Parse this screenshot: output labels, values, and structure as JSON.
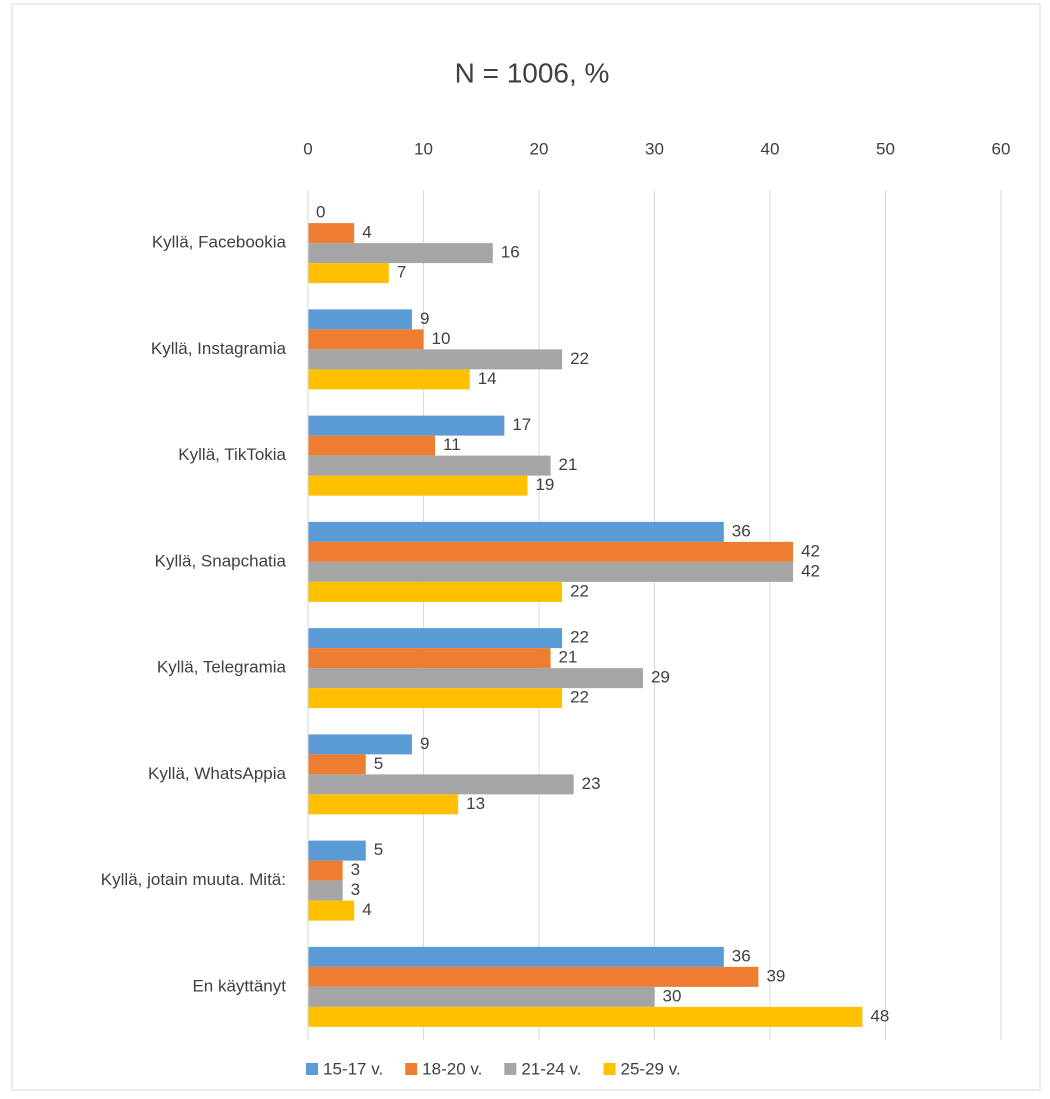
{
  "chart_data": {
    "type": "barh",
    "title": "N = 1006, %",
    "categories": [
      "Kyllä, Facebookia",
      "Kyllä, Instagramia",
      "Kyllä, TikTokia",
      "Kyllä, Snapchatia",
      "Kyllä, Telegramia",
      "Kyllä, WhatsAppia",
      "Kyllä, jotain muuta. Mitä:",
      "En käyttänyt"
    ],
    "series": [
      {
        "name": "15-17 v.",
        "color": "#5b9bd5",
        "values": [
          0,
          9,
          17,
          36,
          22,
          9,
          5,
          36
        ]
      },
      {
        "name": "18-20 v.",
        "color": "#ed7d31",
        "values": [
          4,
          10,
          11,
          42,
          21,
          5,
          3,
          39
        ]
      },
      {
        "name": "21-24 v.",
        "color": "#a5a5a5",
        "values": [
          16,
          22,
          21,
          42,
          29,
          23,
          3,
          30
        ]
      },
      {
        "name": "25-29 v.",
        "color": "#ffc000",
        "values": [
          7,
          14,
          19,
          22,
          22,
          13,
          4,
          48
        ]
      }
    ],
    "xlim": [
      0,
      60
    ],
    "xticks": [
      0,
      10,
      20,
      30,
      40,
      50,
      60
    ],
    "grid": true,
    "legend": "bottom"
  }
}
